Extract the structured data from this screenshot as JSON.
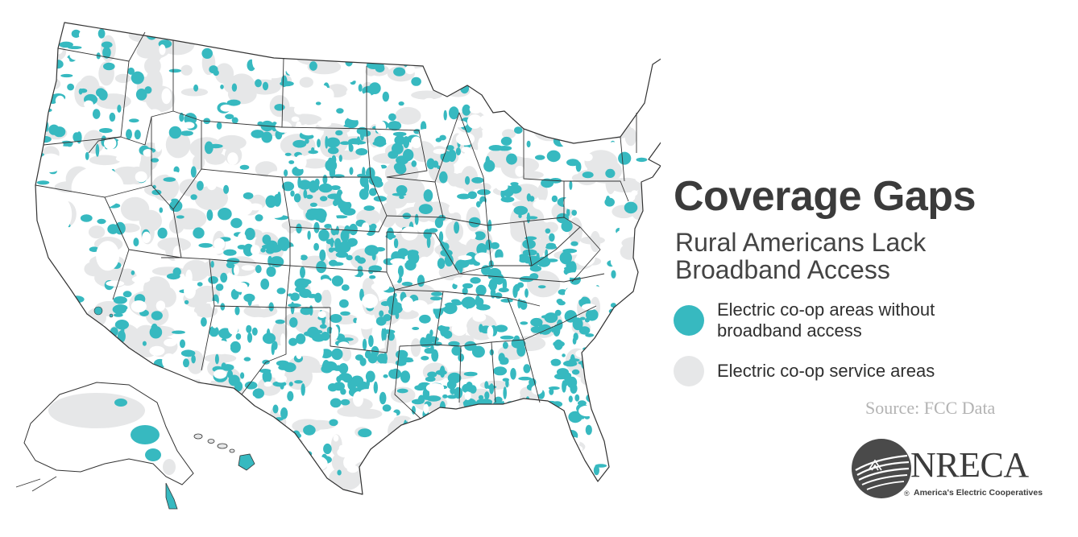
{
  "title": "Coverage Gaps",
  "subtitle": "Rural Americans Lack Broadband Access",
  "legend": [
    {
      "label": "Electric co-op areas without broadband access",
      "color": "#37b9c0"
    },
    {
      "label": "Electric co-op service areas",
      "color": "#e6e7e8"
    }
  ],
  "source": "Source: FCC Data",
  "logo": {
    "name": "NRECA",
    "registered": "®",
    "tagline": "America's Electric Cooperatives"
  },
  "colors": {
    "teal": "#37b9c0",
    "gray": "#e6e7e8",
    "border": "#333333",
    "text": "#3b3b3b"
  }
}
